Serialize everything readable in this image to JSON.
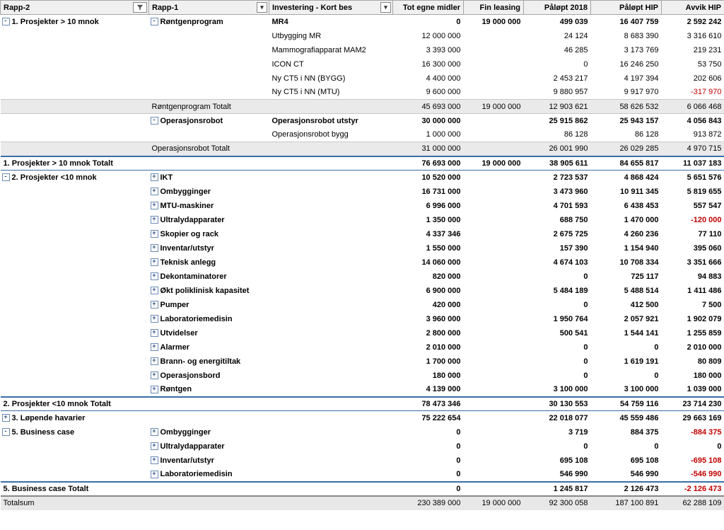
{
  "headers": {
    "rapp2": "Rapp-2",
    "rapp1": "Rapp-1",
    "inv": "Investering - Kort bes",
    "egne": "Tot egne midler",
    "fin": "Fin leasing",
    "palopt2018": "Påløpt 2018",
    "palopthip": "Påløpt HIP",
    "avvik": "Avvik HIP"
  },
  "rows": [
    {
      "type": "data",
      "bold": true,
      "rapp2": "1. Prosjekter > 10 mnok",
      "rapp2exp": "-",
      "rapp1": "Røntgenprogram",
      "rapp1exp": "-",
      "inv": "MR4",
      "egne": "0",
      "fin": "19 000 000",
      "p18": "499 039",
      "php": "16 407 759",
      "avvik": "2 592 242"
    },
    {
      "type": "data",
      "inv": "Utbygging MR",
      "egne": "12 000 000",
      "fin": "",
      "p18": "24 124",
      "php": "8 683 390",
      "avvik": "3 316 610"
    },
    {
      "type": "data",
      "inv": "Mammografiapparat MAM2",
      "egne": "3 393 000",
      "fin": "",
      "p18": "46 285",
      "php": "3 173 769",
      "avvik": "219 231"
    },
    {
      "type": "data",
      "inv": "ICON CT",
      "egne": "16 300 000",
      "fin": "",
      "p18": "0",
      "php": "16 246 250",
      "avvik": "53 750"
    },
    {
      "type": "data",
      "inv": "Ny CT5 i NN (BYGG)",
      "egne": "4 400 000",
      "fin": "",
      "p18": "2 453 217",
      "php": "4 197 394",
      "avvik": "202 606"
    },
    {
      "type": "data",
      "inv": "Ny CT5 i NN (MTU)",
      "egne": "9 600 000",
      "fin": "",
      "p18": "9 880 957",
      "php": "9 917 970",
      "avvik": "-317 970",
      "neg": true
    },
    {
      "type": "sub1",
      "rapp1": "Røntgenprogram Totalt",
      "egne": "45 693 000",
      "fin": "19 000 000",
      "p18": "12 903 621",
      "php": "58 626 532",
      "avvik": "6 066 468"
    },
    {
      "type": "data",
      "bold": true,
      "rapp1": "Operasjonsrobot",
      "rapp1exp": "-",
      "inv": "Operasjonsrobot utstyr",
      "egne": "30 000 000",
      "fin": "",
      "p18": "25 915 862",
      "php": "25 943 157",
      "avvik": "4 056 843"
    },
    {
      "type": "data",
      "inv": "Operasjonsrobot bygg",
      "egne": "1 000 000",
      "fin": "",
      "p18": "86 128",
      "php": "86 128",
      "avvik": "913 872"
    },
    {
      "type": "sub1",
      "rapp1": "Operasjonsrobot Totalt",
      "egne": "31 000 000",
      "fin": "",
      "p18": "26 001 990",
      "php": "26 029 285",
      "avvik": "4 970 715"
    },
    {
      "type": "sub2",
      "bold": true,
      "rapp2": "1. Prosjekter > 10 mnok Totalt",
      "egne": "76 693 000",
      "fin": "19 000 000",
      "p18": "38 905 611",
      "php": "84 655 817",
      "avvik": "11 037 183"
    },
    {
      "type": "data",
      "bold": true,
      "rapp2": "2. Prosjekter <10 mnok",
      "rapp2exp": "-",
      "rapp1": "IKT",
      "rapp1exp": "+",
      "egne": "10 520 000",
      "fin": "",
      "p18": "2 723 537",
      "php": "4 868 424",
      "avvik": "5 651 576"
    },
    {
      "type": "data",
      "bold": true,
      "rapp1": "Ombygginger",
      "rapp1exp": "+",
      "egne": "16 731 000",
      "fin": "",
      "p18": "3 473 960",
      "php": "10 911 345",
      "avvik": "5 819 655"
    },
    {
      "type": "data",
      "bold": true,
      "rapp1": "MTU-maskiner",
      "rapp1exp": "+",
      "egne": "6 996 000",
      "fin": "",
      "p18": "4 701 593",
      "php": "6 438 453",
      "avvik": "557 547"
    },
    {
      "type": "data",
      "bold": true,
      "rapp1": "Ultralydapparater",
      "rapp1exp": "+",
      "egne": "1 350 000",
      "fin": "",
      "p18": "688 750",
      "php": "1 470 000",
      "avvik": "-120 000",
      "neg": true
    },
    {
      "type": "data",
      "bold": true,
      "rapp1": "Skopier og rack",
      "rapp1exp": "+",
      "egne": "4 337 346",
      "fin": "",
      "p18": "2 675 725",
      "php": "4 260 236",
      "avvik": "77 110"
    },
    {
      "type": "data",
      "bold": true,
      "rapp1": "Inventar/utstyr",
      "rapp1exp": "+",
      "egne": "1 550 000",
      "fin": "",
      "p18": "157 390",
      "php": "1 154 940",
      "avvik": "395 060"
    },
    {
      "type": "data",
      "bold": true,
      "rapp1": "Teknisk anlegg",
      "rapp1exp": "+",
      "egne": "14 060 000",
      "fin": "",
      "p18": "4 674 103",
      "php": "10 708 334",
      "avvik": "3 351 666"
    },
    {
      "type": "data",
      "bold": true,
      "rapp1": "Dekontaminatorer",
      "rapp1exp": "+",
      "egne": "820 000",
      "fin": "",
      "p18": "0",
      "php": "725 117",
      "avvik": "94 883"
    },
    {
      "type": "data",
      "bold": true,
      "rapp1": "Økt poliklinisk kapasitet",
      "rapp1exp": "+",
      "egne": "6 900 000",
      "fin": "",
      "p18": "5 484 189",
      "php": "5 488 514",
      "avvik": "1 411 486"
    },
    {
      "type": "data",
      "bold": true,
      "rapp1": "Pumper",
      "rapp1exp": "+",
      "egne": "420 000",
      "fin": "",
      "p18": "0",
      "php": "412 500",
      "avvik": "7 500"
    },
    {
      "type": "data",
      "bold": true,
      "rapp1": "Laboratoriemedisin",
      "rapp1exp": "+",
      "egne": "3 960 000",
      "fin": "",
      "p18": "1 950 764",
      "php": "2 057 921",
      "avvik": "1 902 079"
    },
    {
      "type": "data",
      "bold": true,
      "rapp1": "Utvidelser",
      "rapp1exp": "+",
      "egne": "2 800 000",
      "fin": "",
      "p18": "500 541",
      "php": "1 544 141",
      "avvik": "1 255 859"
    },
    {
      "type": "data",
      "bold": true,
      "rapp1": "Alarmer",
      "rapp1exp": "+",
      "egne": "2 010 000",
      "fin": "",
      "p18": "0",
      "php": "0",
      "avvik": "2 010 000"
    },
    {
      "type": "data",
      "bold": true,
      "rapp1": "Brann- og energitiltak",
      "rapp1exp": "+",
      "egne": "1 700 000",
      "fin": "",
      "p18": "0",
      "php": "1 619 191",
      "avvik": "80 809"
    },
    {
      "type": "data",
      "bold": true,
      "rapp1": "Operasjonsbord",
      "rapp1exp": "+",
      "egne": "180 000",
      "fin": "",
      "p18": "0",
      "php": "0",
      "avvik": "180 000"
    },
    {
      "type": "data",
      "bold": true,
      "rapp1": "Røntgen",
      "rapp1exp": "+",
      "egne": "4 139 000",
      "fin": "",
      "p18": "3 100 000",
      "php": "3 100 000",
      "avvik": "1 039 000"
    },
    {
      "type": "sub2",
      "bold": true,
      "rapp2": "2. Prosjekter <10 mnok Totalt",
      "egne": "78 473 346",
      "fin": "",
      "p18": "30 130 553",
      "php": "54 759 116",
      "avvik": "23 714 230"
    },
    {
      "type": "data",
      "bold": true,
      "rapp2": "3. Løpende havarier",
      "rapp2exp": "+",
      "egne": "75 222 654",
      "fin": "",
      "p18": "22 018 077",
      "php": "45 559 486",
      "avvik": "29 663 169"
    },
    {
      "type": "data",
      "bold": true,
      "rapp2": "5. Business case",
      "rapp2exp": "-",
      "rapp1": "Ombygginger",
      "rapp1exp": "+",
      "egne": "0",
      "fin": "",
      "p18": "3 719",
      "php": "884 375",
      "avvik": "-884 375",
      "neg": true
    },
    {
      "type": "data",
      "bold": true,
      "rapp1": "Ultralydapparater",
      "rapp1exp": "+",
      "egne": "0",
      "fin": "",
      "p18": "0",
      "php": "0",
      "avvik": "0"
    },
    {
      "type": "data",
      "bold": true,
      "rapp1": "Inventar/utstyr",
      "rapp1exp": "+",
      "egne": "0",
      "fin": "",
      "p18": "695 108",
      "php": "695 108",
      "avvik": "-695 108",
      "neg": true
    },
    {
      "type": "data",
      "bold": true,
      "rapp1": "Laboratoriemedisin",
      "rapp1exp": "+",
      "egne": "0",
      "fin": "",
      "p18": "546 990",
      "php": "546 990",
      "avvik": "-546 990",
      "neg": true
    },
    {
      "type": "sub2",
      "bold": true,
      "rapp2": "5. Business case Totalt",
      "egne": "0",
      "fin": "",
      "p18": "1 245 817",
      "php": "2 126 473",
      "avvik": "-2 126 473",
      "neg": true
    },
    {
      "type": "grand",
      "rapp2": "Totalsum",
      "egne": "230 389 000",
      "fin": "19 000 000",
      "p18": "92 300 058",
      "php": "187 100 891",
      "avvik": "62 288 109"
    }
  ]
}
